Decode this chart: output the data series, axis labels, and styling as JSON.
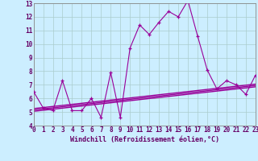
{
  "title": "",
  "xlabel": "Windchill (Refroidissement éolien,°C)",
  "x_values": [
    0,
    1,
    2,
    3,
    4,
    5,
    6,
    7,
    8,
    9,
    10,
    11,
    12,
    13,
    14,
    15,
    16,
    17,
    18,
    19,
    20,
    21,
    22,
    23
  ],
  "main_line": [
    6.5,
    5.3,
    5.1,
    7.3,
    5.1,
    5.1,
    6.0,
    4.6,
    7.9,
    4.6,
    9.7,
    11.4,
    10.7,
    11.6,
    12.4,
    12.0,
    13.2,
    10.6,
    8.1,
    6.7,
    7.3,
    7.0,
    6.3,
    7.7
  ],
  "reg_lines": [
    [
      5.05,
      6.85
    ],
    [
      5.15,
      6.95
    ],
    [
      5.25,
      7.05
    ]
  ],
  "line_color": "#990099",
  "bg_color": "#cceeff",
  "grid_color": "#aacccc",
  "ylim": [
    4,
    13
  ],
  "xlim": [
    0,
    23
  ],
  "yticks": [
    4,
    5,
    6,
    7,
    8,
    9,
    10,
    11,
    12,
    13
  ],
  "xticks": [
    0,
    1,
    2,
    3,
    4,
    5,
    6,
    7,
    8,
    9,
    10,
    11,
    12,
    13,
    14,
    15,
    16,
    17,
    18,
    19,
    20,
    21,
    22,
    23
  ]
}
